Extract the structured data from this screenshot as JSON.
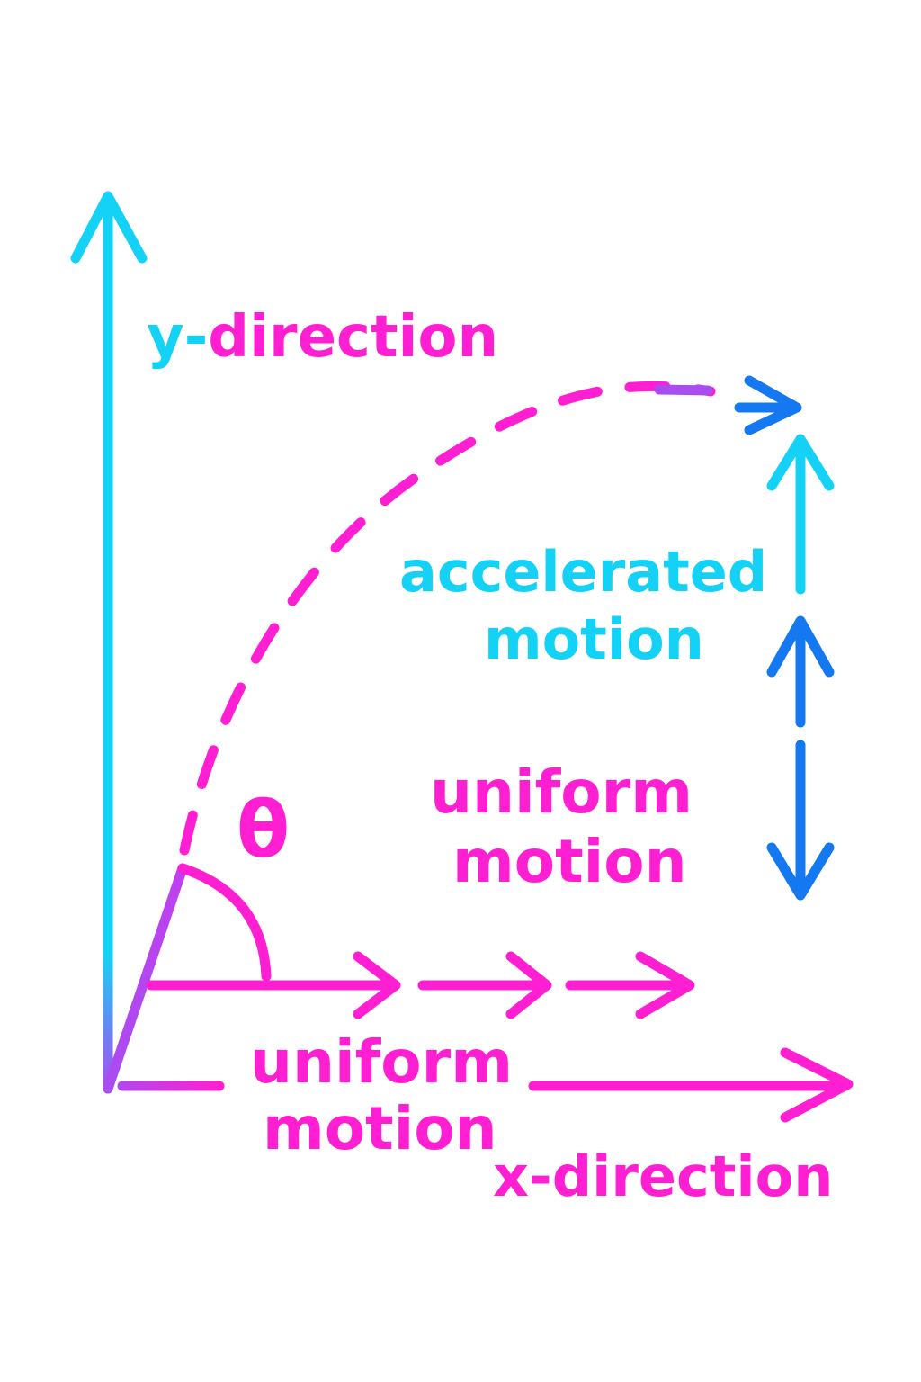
{
  "labels": {
    "y_prefix": "y-",
    "y_rest": "direction",
    "x_direction": "x-direction",
    "accelerated_line1": "accelerated",
    "accelerated_line2": "motion",
    "uniform_right_line1": "uniform",
    "uniform_right_line2": "motion",
    "uniform_bottom_line1": "uniform",
    "uniform_bottom_line2": "motion",
    "theta": "θ"
  },
  "colors": {
    "magenta": "#ff1fd2",
    "cyan": "#14d2f5",
    "blue": "#1478f0",
    "purple": "#a94cf0"
  }
}
